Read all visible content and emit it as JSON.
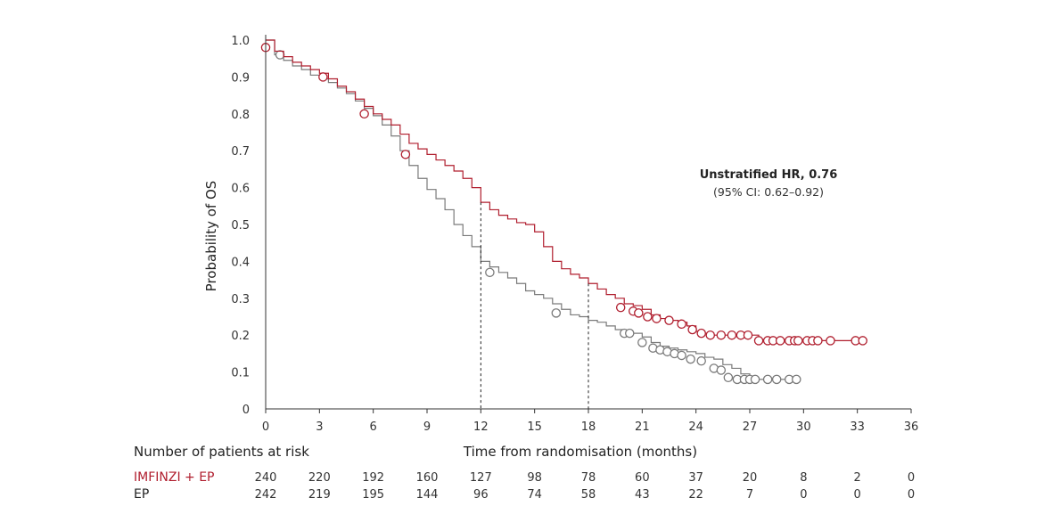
{
  "chart_data": {
    "type": "line",
    "subtype": "kaplan-meier",
    "title": "",
    "xlabel": "Time from randomisation (months)",
    "ylabel": "Probability of OS",
    "xlim": [
      0,
      36
    ],
    "ylim": [
      0,
      1.0
    ],
    "x_ticks": [
      0,
      3,
      6,
      9,
      12,
      15,
      18,
      21,
      24,
      27,
      30,
      33,
      36
    ],
    "y_ticks": [
      0,
      0.1,
      0.2,
      0.3,
      0.4,
      0.5,
      0.6,
      0.7,
      0.8,
      0.9,
      1.0
    ],
    "y_tick_labels": [
      "0",
      "0.1",
      "0.2",
      "0.3",
      "0.4",
      "0.5",
      "0.6",
      "0.7",
      "0.8",
      "0.9",
      "1.0"
    ],
    "grid": false,
    "reference_lines_x": [
      12,
      18
    ],
    "annotation": {
      "title": "Unstratified HR, 0.76",
      "subtitle": "(95% CI: 0.62–0.92)"
    },
    "series": [
      {
        "name": "IMFINZI + EP",
        "color": "#b01e2e",
        "points": [
          [
            0,
            1.0
          ],
          [
            0.5,
            0.97
          ],
          [
            1.0,
            0.955
          ],
          [
            1.5,
            0.94
          ],
          [
            2.0,
            0.93
          ],
          [
            2.5,
            0.92
          ],
          [
            3.0,
            0.91
          ],
          [
            3.5,
            0.895
          ],
          [
            4.0,
            0.875
          ],
          [
            4.5,
            0.86
          ],
          [
            5.0,
            0.84
          ],
          [
            5.5,
            0.82
          ],
          [
            6.0,
            0.8
          ],
          [
            6.5,
            0.785
          ],
          [
            7.0,
            0.77
          ],
          [
            7.5,
            0.745
          ],
          [
            8.0,
            0.72
          ],
          [
            8.5,
            0.705
          ],
          [
            9.0,
            0.69
          ],
          [
            9.5,
            0.675
          ],
          [
            10.0,
            0.66
          ],
          [
            10.5,
            0.645
          ],
          [
            11.0,
            0.625
          ],
          [
            11.5,
            0.6
          ],
          [
            12.0,
            0.56
          ],
          [
            12.5,
            0.54
          ],
          [
            13.0,
            0.525
          ],
          [
            13.5,
            0.515
          ],
          [
            14.0,
            0.505
          ],
          [
            14.5,
            0.5
          ],
          [
            15.0,
            0.48
          ],
          [
            15.5,
            0.44
          ],
          [
            16.0,
            0.4
          ],
          [
            16.5,
            0.38
          ],
          [
            17.0,
            0.365
          ],
          [
            17.5,
            0.355
          ],
          [
            18.0,
            0.34
          ],
          [
            18.5,
            0.325
          ],
          [
            19.0,
            0.31
          ],
          [
            19.5,
            0.3
          ],
          [
            20.0,
            0.285
          ],
          [
            20.5,
            0.28
          ],
          [
            21.0,
            0.27
          ],
          [
            21.5,
            0.255
          ],
          [
            22.0,
            0.245
          ],
          [
            22.5,
            0.24
          ],
          [
            23.0,
            0.235
          ],
          [
            23.5,
            0.225
          ],
          [
            24.0,
            0.21
          ],
          [
            24.5,
            0.205
          ],
          [
            25.0,
            0.2
          ],
          [
            26.0,
            0.2
          ],
          [
            27.0,
            0.2
          ],
          [
            27.5,
            0.185
          ],
          [
            28.0,
            0.185
          ],
          [
            29.0,
            0.185
          ],
          [
            30.0,
            0.185
          ],
          [
            31.0,
            0.185
          ],
          [
            32.0,
            0.185
          ],
          [
            33.0,
            0.185
          ],
          [
            33.5,
            0.185
          ]
        ],
        "censors": [
          [
            0,
            0.98
          ],
          [
            3.2,
            0.9
          ],
          [
            5.5,
            0.8
          ],
          [
            7.8,
            0.69
          ],
          [
            19.8,
            0.275
          ],
          [
            20.5,
            0.265
          ],
          [
            20.8,
            0.26
          ],
          [
            21.3,
            0.25
          ],
          [
            21.8,
            0.245
          ],
          [
            22.5,
            0.24
          ],
          [
            23.2,
            0.23
          ],
          [
            23.8,
            0.215
          ],
          [
            24.3,
            0.205
          ],
          [
            24.8,
            0.2
          ],
          [
            25.4,
            0.2
          ],
          [
            26.0,
            0.2
          ],
          [
            26.5,
            0.2
          ],
          [
            26.9,
            0.2
          ],
          [
            27.5,
            0.185
          ],
          [
            28.0,
            0.185
          ],
          [
            28.3,
            0.185
          ],
          [
            28.7,
            0.185
          ],
          [
            29.2,
            0.185
          ],
          [
            29.5,
            0.185
          ],
          [
            29.7,
            0.185
          ],
          [
            30.2,
            0.185
          ],
          [
            30.5,
            0.185
          ],
          [
            30.8,
            0.185
          ],
          [
            31.5,
            0.185
          ],
          [
            32.9,
            0.185
          ],
          [
            33.3,
            0.185
          ]
        ]
      },
      {
        "name": "EP",
        "color": "#7a7a7a",
        "points": [
          [
            0,
            1.0
          ],
          [
            0.5,
            0.96
          ],
          [
            1.0,
            0.945
          ],
          [
            1.5,
            0.93
          ],
          [
            2.0,
            0.92
          ],
          [
            2.5,
            0.905
          ],
          [
            3.0,
            0.895
          ],
          [
            3.5,
            0.885
          ],
          [
            4.0,
            0.87
          ],
          [
            4.5,
            0.855
          ],
          [
            5.0,
            0.835
          ],
          [
            5.5,
            0.815
          ],
          [
            6.0,
            0.795
          ],
          [
            6.5,
            0.77
          ],
          [
            7.0,
            0.74
          ],
          [
            7.5,
            0.7
          ],
          [
            8.0,
            0.66
          ],
          [
            8.5,
            0.625
          ],
          [
            9.0,
            0.595
          ],
          [
            9.5,
            0.57
          ],
          [
            10.0,
            0.54
          ],
          [
            10.5,
            0.5
          ],
          [
            11.0,
            0.47
          ],
          [
            11.5,
            0.44
          ],
          [
            12.0,
            0.4
          ],
          [
            12.5,
            0.385
          ],
          [
            13.0,
            0.37
          ],
          [
            13.5,
            0.355
          ],
          [
            14.0,
            0.34
          ],
          [
            14.5,
            0.32
          ],
          [
            15.0,
            0.31
          ],
          [
            15.5,
            0.3
          ],
          [
            16.0,
            0.285
          ],
          [
            16.5,
            0.27
          ],
          [
            17.0,
            0.255
          ],
          [
            17.5,
            0.25
          ],
          [
            18.0,
            0.24
          ],
          [
            18.5,
            0.235
          ],
          [
            19.0,
            0.225
          ],
          [
            19.5,
            0.215
          ],
          [
            20.0,
            0.21
          ],
          [
            20.5,
            0.205
          ],
          [
            21.0,
            0.195
          ],
          [
            21.5,
            0.18
          ],
          [
            22.0,
            0.17
          ],
          [
            22.5,
            0.165
          ],
          [
            23.0,
            0.16
          ],
          [
            23.5,
            0.155
          ],
          [
            24.0,
            0.15
          ],
          [
            24.5,
            0.14
          ],
          [
            25.0,
            0.135
          ],
          [
            25.5,
            0.12
          ],
          [
            26.0,
            0.11
          ],
          [
            26.5,
            0.095
          ],
          [
            27.0,
            0.085
          ],
          [
            27.5,
            0.08
          ],
          [
            28.0,
            0.08
          ],
          [
            29.0,
            0.08
          ],
          [
            29.8,
            0.08
          ]
        ],
        "censors": [
          [
            0.8,
            0.96
          ],
          [
            12.5,
            0.37
          ],
          [
            16.2,
            0.26
          ],
          [
            20.0,
            0.205
          ],
          [
            20.3,
            0.205
          ],
          [
            21.0,
            0.18
          ],
          [
            21.6,
            0.165
          ],
          [
            22.0,
            0.16
          ],
          [
            22.4,
            0.155
          ],
          [
            22.8,
            0.15
          ],
          [
            23.2,
            0.145
          ],
          [
            23.7,
            0.135
          ],
          [
            24.3,
            0.13
          ],
          [
            25.0,
            0.11
          ],
          [
            25.4,
            0.105
          ],
          [
            25.8,
            0.085
          ],
          [
            26.3,
            0.08
          ],
          [
            26.7,
            0.08
          ],
          [
            27.0,
            0.08
          ],
          [
            27.3,
            0.08
          ],
          [
            28.0,
            0.08
          ],
          [
            28.5,
            0.08
          ],
          [
            29.2,
            0.08
          ],
          [
            29.6,
            0.08
          ]
        ]
      }
    ],
    "risk_table": {
      "title": "Number of patients at risk",
      "timepoints": [
        0,
        3,
        6,
        9,
        12,
        15,
        18,
        21,
        24,
        27,
        30,
        33,
        36
      ],
      "rows": [
        {
          "label": "IMFINZI + EP",
          "color": "#b01e2e",
          "values": [
            "240",
            "220",
            "192",
            "160",
            "127",
            "98",
            "78",
            "60",
            "37",
            "20",
            "8",
            "2",
            "0"
          ]
        },
        {
          "label": "EP",
          "color": "#222222",
          "values": [
            "242",
            "219",
            "195",
            "144",
            "96",
            "74",
            "58",
            "43",
            "22",
            "7",
            "0",
            "0",
            "0"
          ]
        }
      ]
    }
  }
}
